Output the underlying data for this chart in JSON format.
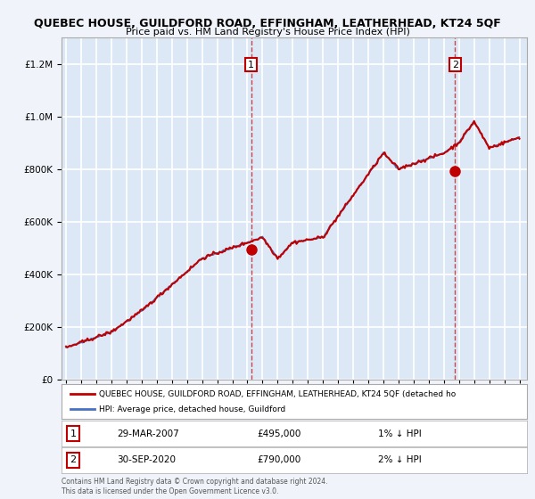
{
  "title": "QUEBEC HOUSE, GUILDFORD ROAD, EFFINGHAM, LEATHERHEAD, KT24 5QF",
  "subtitle": "Price paid vs. HM Land Registry's House Price Index (HPI)",
  "ylabel": "",
  "background_color": "#f0f4fa",
  "plot_bg_color": "#dce8f5",
  "grid_color": "#ffffff",
  "sale1_date": "29-MAR-2007",
  "sale1_price": 495000,
  "sale1_label": "1",
  "sale1_pct": "1% ↓ HPI",
  "sale2_date": "30-SEP-2020",
  "sale2_price": 790000,
  "sale2_label": "2",
  "sale2_pct": "2% ↓ HPI",
  "legend_line1": "QUEBEC HOUSE, GUILDFORD ROAD, EFFINGHAM, LEATHERHEAD, KT24 5QF (detached ho",
  "legend_line2": "HPI: Average price, detached house, Guildford",
  "footer": "Contains HM Land Registry data © Crown copyright and database right 2024.\nThis data is licensed under the Open Government Licence v3.0.",
  "hpi_color": "#4472c4",
  "sale_color": "#c00000",
  "ylim_max": 1300000,
  "ylim_min": 0,
  "start_year": 1995,
  "end_year": 2025
}
